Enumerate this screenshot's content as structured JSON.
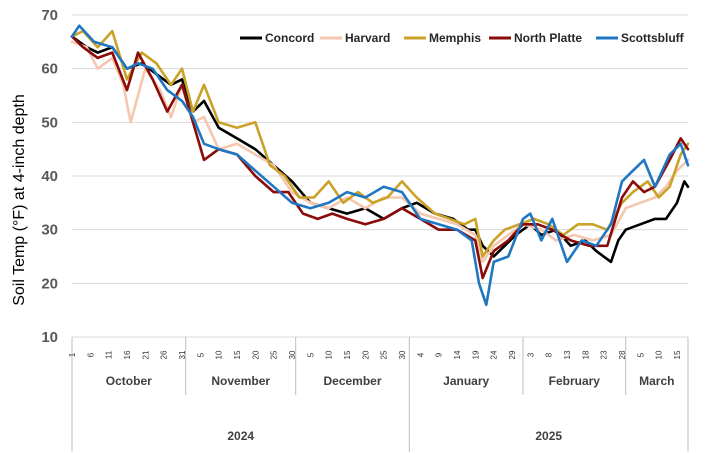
{
  "chart_data": {
    "type": "line",
    "ylabel": "Soil Temp (°F) at 4-inch depth",
    "ylim": [
      10,
      70
    ],
    "yticks": [
      10,
      20,
      30,
      40,
      50,
      60,
      70
    ],
    "grid": true,
    "legend_position": "top-right",
    "months": [
      {
        "label": "October",
        "days": [
          "1",
          "6",
          "11",
          "16",
          "21",
          "26",
          "31"
        ]
      },
      {
        "label": "November",
        "days": [
          "5",
          "10",
          "15",
          "20",
          "25",
          "30"
        ]
      },
      {
        "label": "December",
        "days": [
          "5",
          "10",
          "15",
          "20",
          "25",
          "30"
        ]
      },
      {
        "label": "January",
        "days": [
          "4",
          "9",
          "14",
          "19",
          "24",
          "29"
        ]
      },
      {
        "label": "February",
        "days": [
          "3",
          "8",
          "13",
          "18",
          "23",
          "28"
        ]
      },
      {
        "label": "March",
        "days": [
          "5",
          "10",
          "15"
        ]
      }
    ],
    "years": [
      "2024",
      "2025"
    ],
    "x_start": "2024-10-01",
    "x_end": "2025-03-18",
    "series": [
      {
        "name": "Concord",
        "color": "#000000",
        "points": [
          [
            "2024-10-01",
            66
          ],
          [
            "2024-10-05",
            64
          ],
          [
            "2024-10-08",
            63
          ],
          [
            "2024-10-12",
            64
          ],
          [
            "2024-10-16",
            60
          ],
          [
            "2024-10-20",
            61
          ],
          [
            "2024-10-24",
            59
          ],
          [
            "2024-10-28",
            57
          ],
          [
            "2024-10-31",
            58
          ],
          [
            "2024-11-03",
            52
          ],
          [
            "2024-11-06",
            54
          ],
          [
            "2024-11-10",
            49
          ],
          [
            "2024-11-15",
            47
          ],
          [
            "2024-11-20",
            45
          ],
          [
            "2024-11-25",
            42
          ],
          [
            "2024-11-30",
            39
          ],
          [
            "2024-12-05",
            35
          ],
          [
            "2024-12-10",
            34
          ],
          [
            "2024-12-15",
            33
          ],
          [
            "2024-12-20",
            34
          ],
          [
            "2024-12-25",
            32
          ],
          [
            "2024-12-30",
            34
          ],
          [
            "2025-01-03",
            35
          ],
          [
            "2025-01-08",
            33
          ],
          [
            "2025-01-13",
            32
          ],
          [
            "2025-01-17",
            30
          ],
          [
            "2025-01-19",
            30
          ],
          [
            "2025-01-21",
            27
          ],
          [
            "2025-01-24",
            25
          ],
          [
            "2025-01-27",
            27
          ],
          [
            "2025-01-30",
            29
          ],
          [
            "2025-02-03",
            31
          ],
          [
            "2025-02-06",
            29
          ],
          [
            "2025-02-10",
            30
          ],
          [
            "2025-02-14",
            27
          ],
          [
            "2025-02-18",
            28
          ],
          [
            "2025-02-21",
            26
          ],
          [
            "2025-02-25",
            24
          ],
          [
            "2025-02-27",
            28
          ],
          [
            "2025-03-01",
            30
          ],
          [
            "2025-03-05",
            31
          ],
          [
            "2025-03-09",
            32
          ],
          [
            "2025-03-12",
            32
          ],
          [
            "2025-03-15",
            35
          ],
          [
            "2025-03-17",
            39
          ],
          [
            "2025-03-18",
            38
          ]
        ]
      },
      {
        "name": "Harvard",
        "color": "#f4c7ae",
        "points": [
          [
            "2024-10-01",
            65
          ],
          [
            "2024-10-05",
            64
          ],
          [
            "2024-10-08",
            60
          ],
          [
            "2024-10-12",
            62
          ],
          [
            "2024-10-15",
            57
          ],
          [
            "2024-10-17",
            50
          ],
          [
            "2024-10-21",
            60
          ],
          [
            "2024-10-25",
            56
          ],
          [
            "2024-10-28",
            51
          ],
          [
            "2024-10-31",
            57
          ],
          [
            "2024-11-03",
            50
          ],
          [
            "2024-11-06",
            51
          ],
          [
            "2024-11-10",
            45
          ],
          [
            "2024-11-15",
            46
          ],
          [
            "2024-11-20",
            44
          ],
          [
            "2024-11-25",
            42
          ],
          [
            "2024-11-30",
            37
          ],
          [
            "2024-12-05",
            35
          ],
          [
            "2024-12-10",
            34
          ],
          [
            "2024-12-15",
            36
          ],
          [
            "2024-12-20",
            34
          ],
          [
            "2024-12-25",
            36
          ],
          [
            "2024-12-30",
            36
          ],
          [
            "2025-01-04",
            33
          ],
          [
            "2025-01-09",
            32
          ],
          [
            "2025-01-14",
            31
          ],
          [
            "2025-01-19",
            29
          ],
          [
            "2025-01-21",
            24
          ],
          [
            "2025-01-24",
            27
          ],
          [
            "2025-01-28",
            29
          ],
          [
            "2025-02-01",
            31
          ],
          [
            "2025-02-06",
            30
          ],
          [
            "2025-02-10",
            28
          ],
          [
            "2025-02-15",
            29
          ],
          [
            "2025-02-20",
            28
          ],
          [
            "2025-02-25",
            29
          ],
          [
            "2025-03-01",
            34
          ],
          [
            "2025-03-05",
            35
          ],
          [
            "2025-03-09",
            36
          ],
          [
            "2025-03-12",
            38
          ],
          [
            "2025-03-15",
            41
          ],
          [
            "2025-03-18",
            43
          ]
        ]
      },
      {
        "name": "Memphis",
        "color": "#c9a227",
        "points": [
          [
            "2024-10-01",
            66
          ],
          [
            "2024-10-04",
            67
          ],
          [
            "2024-10-08",
            64
          ],
          [
            "2024-10-12",
            67
          ],
          [
            "2024-10-16",
            58
          ],
          [
            "2024-10-20",
            63
          ],
          [
            "2024-10-24",
            61
          ],
          [
            "2024-10-28",
            57
          ],
          [
            "2024-10-31",
            60
          ],
          [
            "2024-11-03",
            52
          ],
          [
            "2024-11-06",
            57
          ],
          [
            "2024-11-10",
            50
          ],
          [
            "2024-11-15",
            49
          ],
          [
            "2024-11-20",
            50
          ],
          [
            "2024-11-24",
            42
          ],
          [
            "2024-11-28",
            40
          ],
          [
            "2024-12-02",
            36
          ],
          [
            "2024-12-06",
            36
          ],
          [
            "2024-12-10",
            39
          ],
          [
            "2024-12-14",
            35
          ],
          [
            "2024-12-18",
            37
          ],
          [
            "2024-12-22",
            35
          ],
          [
            "2024-12-26",
            36
          ],
          [
            "2024-12-30",
            39
          ],
          [
            "2025-01-03",
            36
          ],
          [
            "2025-01-08",
            33
          ],
          [
            "2025-01-12",
            32
          ],
          [
            "2025-01-16",
            31
          ],
          [
            "2025-01-19",
            32
          ],
          [
            "2025-01-21",
            25
          ],
          [
            "2025-01-24",
            28
          ],
          [
            "2025-01-27",
            30
          ],
          [
            "2025-01-31",
            31
          ],
          [
            "2025-02-04",
            32
          ],
          [
            "2025-02-08",
            31
          ],
          [
            "2025-02-12",
            29
          ],
          [
            "2025-02-16",
            31
          ],
          [
            "2025-02-20",
            31
          ],
          [
            "2025-02-24",
            30
          ],
          [
            "2025-02-28",
            35
          ],
          [
            "2025-03-03",
            37
          ],
          [
            "2025-03-07",
            39
          ],
          [
            "2025-03-10",
            36
          ],
          [
            "2025-03-13",
            38
          ],
          [
            "2025-03-16",
            44
          ],
          [
            "2025-03-18",
            46
          ]
        ]
      },
      {
        "name": "North Platte",
        "color": "#8b0a0a",
        "points": [
          [
            "2024-10-01",
            66
          ],
          [
            "2024-10-04",
            64
          ],
          [
            "2024-10-08",
            62
          ],
          [
            "2024-10-12",
            63
          ],
          [
            "2024-10-16",
            56
          ],
          [
            "2024-10-19",
            63
          ],
          [
            "2024-10-23",
            58
          ],
          [
            "2024-10-27",
            52
          ],
          [
            "2024-10-31",
            57
          ],
          [
            "2024-11-03",
            50
          ],
          [
            "2024-11-06",
            43
          ],
          [
            "2024-11-10",
            45
          ],
          [
            "2024-11-15",
            44
          ],
          [
            "2024-11-20",
            40
          ],
          [
            "2024-11-25",
            37
          ],
          [
            "2024-11-29",
            37
          ],
          [
            "2024-12-03",
            33
          ],
          [
            "2024-12-07",
            32
          ],
          [
            "2024-12-11",
            33
          ],
          [
            "2024-12-15",
            32
          ],
          [
            "2024-12-20",
            31
          ],
          [
            "2024-12-25",
            32
          ],
          [
            "2024-12-30",
            34
          ],
          [
            "2025-01-04",
            32
          ],
          [
            "2025-01-09",
            30
          ],
          [
            "2025-01-14",
            30
          ],
          [
            "2025-01-19",
            28
          ],
          [
            "2025-01-21",
            21
          ],
          [
            "2025-01-24",
            26
          ],
          [
            "2025-01-28",
            28
          ],
          [
            "2025-02-01",
            31
          ],
          [
            "2025-02-05",
            31
          ],
          [
            "2025-02-09",
            30
          ],
          [
            "2025-02-14",
            28
          ],
          [
            "2025-02-19",
            27
          ],
          [
            "2025-02-24",
            27
          ],
          [
            "2025-02-28",
            36
          ],
          [
            "2025-03-03",
            39
          ],
          [
            "2025-03-06",
            37
          ],
          [
            "2025-03-09",
            38
          ],
          [
            "2025-03-13",
            43
          ],
          [
            "2025-03-16",
            47
          ],
          [
            "2025-03-18",
            45
          ]
        ]
      },
      {
        "name": "Scottsbluff",
        "color": "#1f77c4",
        "points": [
          [
            "2024-10-01",
            66
          ],
          [
            "2024-10-03",
            68
          ],
          [
            "2024-10-07",
            65
          ],
          [
            "2024-10-12",
            64
          ],
          [
            "2024-10-16",
            60
          ],
          [
            "2024-10-19",
            61
          ],
          [
            "2024-10-23",
            60
          ],
          [
            "2024-10-27",
            56
          ],
          [
            "2024-10-31",
            54
          ],
          [
            "2024-11-03",
            51
          ],
          [
            "2024-11-06",
            46
          ],
          [
            "2024-11-10",
            45
          ],
          [
            "2024-11-15",
            44
          ],
          [
            "2024-11-20",
            41
          ],
          [
            "2024-11-25",
            38
          ],
          [
            "2024-11-30",
            35
          ],
          [
            "2024-12-05",
            34
          ],
          [
            "2024-12-10",
            35
          ],
          [
            "2024-12-15",
            37
          ],
          [
            "2024-12-20",
            36
          ],
          [
            "2024-12-25",
            38
          ],
          [
            "2024-12-30",
            37
          ],
          [
            "2025-01-04",
            32
          ],
          [
            "2025-01-09",
            31
          ],
          [
            "2025-01-14",
            30
          ],
          [
            "2025-01-18",
            28
          ],
          [
            "2025-01-20",
            20
          ],
          [
            "2025-01-22",
            16
          ],
          [
            "2025-01-24",
            24
          ],
          [
            "2025-01-28",
            25
          ],
          [
            "2025-02-01",
            32
          ],
          [
            "2025-02-03",
            33
          ],
          [
            "2025-02-06",
            28
          ],
          [
            "2025-02-09",
            32
          ],
          [
            "2025-02-13",
            24
          ],
          [
            "2025-02-17",
            28
          ],
          [
            "2025-02-21",
            27
          ],
          [
            "2025-02-25",
            31
          ],
          [
            "2025-02-28",
            39
          ],
          [
            "2025-03-03",
            41
          ],
          [
            "2025-03-06",
            43
          ],
          [
            "2025-03-09",
            38
          ],
          [
            "2025-03-13",
            44
          ],
          [
            "2025-03-16",
            46
          ],
          [
            "2025-03-18",
            42
          ]
        ]
      }
    ]
  }
}
